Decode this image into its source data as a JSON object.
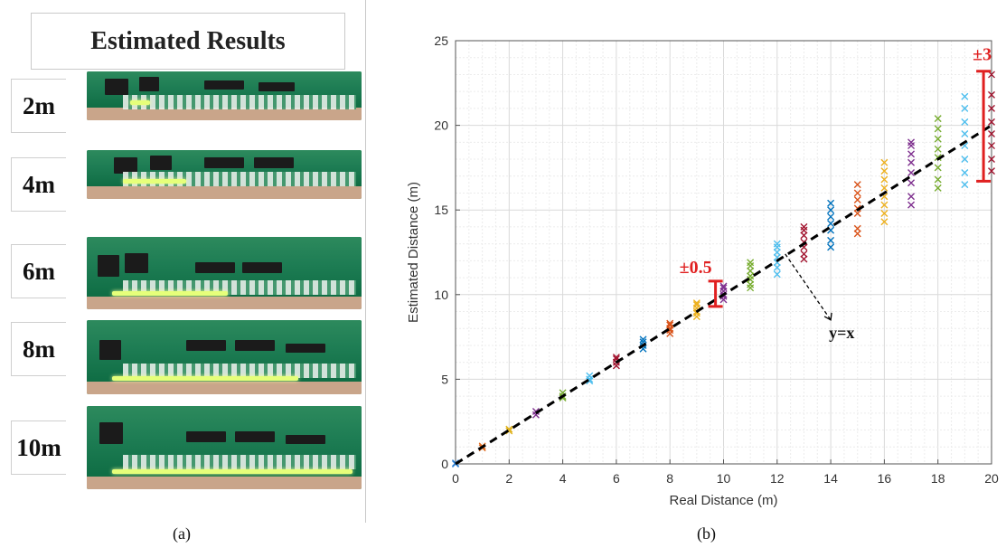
{
  "panel_a": {
    "title": "Estimated Results",
    "rows": [
      {
        "label": "2m",
        "led_level": 0.08
      },
      {
        "label": "4m",
        "led_level": 0.28
      },
      {
        "label": "6m",
        "led_level": 0.42
      },
      {
        "label": "8m",
        "led_level": 0.7
      },
      {
        "label": "10m",
        "led_level": 0.97
      }
    ],
    "caption": "(a)"
  },
  "panel_b": {
    "caption": "(b)",
    "annotations": {
      "small_error": "±0.5",
      "large_error": "±3",
      "line_label": "y=x"
    }
  },
  "chart_data": {
    "type": "scatter",
    "title": "",
    "xlabel": "Real Distance (m)",
    "ylabel": "Estimated Distance (m)",
    "xlim": [
      0,
      20
    ],
    "ylim": [
      0,
      25
    ],
    "xticks": [
      "0",
      "2",
      "4",
      "6",
      "8",
      "10",
      "12",
      "14",
      "16",
      "18",
      "20"
    ],
    "yticks": [
      "0",
      "5",
      "10",
      "15",
      "20",
      "25"
    ],
    "grid": true,
    "reference_line": {
      "label": "y=x",
      "style": "dashed",
      "color": "#000000"
    },
    "error_bars": [
      {
        "x": 9.7,
        "low": 9.3,
        "high": 10.8,
        "label": "±0.5",
        "color": "#e02020"
      },
      {
        "x": 19.7,
        "low": 16.7,
        "high": 23.2,
        "label": "±3",
        "color": "#e02020"
      }
    ],
    "series": [
      {
        "x": 0,
        "y": [
          0.0,
          0.05
        ],
        "color": "#2a7fd4"
      },
      {
        "x": 1,
        "y": [
          0.95,
          1.05
        ],
        "color": "#e06a1c"
      },
      {
        "x": 2,
        "y": [
          1.95,
          2.05
        ],
        "color": "#e0b21c"
      },
      {
        "x": 3,
        "y": [
          2.9,
          3.1
        ],
        "color": "#7e2f8e"
      },
      {
        "x": 4,
        "y": [
          3.9,
          4.0,
          4.2
        ],
        "color": "#77ac30"
      },
      {
        "x": 5,
        "y": [
          4.9,
          5.0,
          5.2
        ],
        "color": "#4dbeee"
      },
      {
        "x": 6,
        "y": [
          5.8,
          6.0,
          6.2,
          6.3
        ],
        "color": "#a2142f"
      },
      {
        "x": 7,
        "y": [
          6.8,
          7.0,
          7.2,
          7.35
        ],
        "color": "#0072bd"
      },
      {
        "x": 8,
        "y": [
          7.7,
          7.9,
          8.0,
          8.2,
          8.3
        ],
        "color": "#d95319"
      },
      {
        "x": 9,
        "y": [
          8.7,
          8.9,
          9.0,
          9.2,
          9.4,
          9.5
        ],
        "color": "#edb120"
      },
      {
        "x": 10,
        "y": [
          9.7,
          9.9,
          10.0,
          10.2,
          10.4,
          10.5
        ],
        "color": "#7e2f8e"
      },
      {
        "x": 11,
        "y": [
          10.4,
          10.6,
          10.9,
          11.1,
          11.4,
          11.7,
          11.9
        ],
        "color": "#77ac30"
      },
      {
        "x": 12,
        "y": [
          11.2,
          11.6,
          11.9,
          12.2,
          12.5,
          12.8,
          13.0
        ],
        "color": "#4dbeee"
      },
      {
        "x": 13,
        "y": [
          12.1,
          12.4,
          12.8,
          13.1,
          13.5,
          13.8,
          14.0
        ],
        "color": "#a2142f"
      },
      {
        "x": 14,
        "y": [
          12.8,
          13.2,
          13.8,
          14.2,
          14.6,
          15.0,
          15.4
        ],
        "color": "#0072bd"
      },
      {
        "x": 15,
        "y": [
          13.6,
          13.9,
          14.8,
          15.1,
          15.6,
          16.0,
          16.5
        ],
        "color": "#d95319"
      },
      {
        "x": 16,
        "y": [
          14.3,
          14.8,
          15.3,
          15.8,
          16.3,
          16.8,
          17.3,
          17.8
        ],
        "color": "#edb120"
      },
      {
        "x": 17,
        "y": [
          15.3,
          15.8,
          16.6,
          17.2,
          17.8,
          18.3,
          18.8,
          19.0
        ],
        "color": "#7e2f8e"
      },
      {
        "x": 18,
        "y": [
          16.3,
          16.8,
          17.5,
          18.1,
          18.6,
          19.2,
          19.8,
          20.4
        ],
        "color": "#77ac30"
      },
      {
        "x": 19,
        "y": [
          16.5,
          17.2,
          18.0,
          18.8,
          19.5,
          20.2,
          21.0,
          21.7
        ],
        "color": "#4dbeee"
      },
      {
        "x": 20,
        "y": [
          17.3,
          18.0,
          18.8,
          19.5,
          20.2,
          21.0,
          21.8,
          23.0
        ],
        "color": "#a2142f"
      }
    ]
  }
}
